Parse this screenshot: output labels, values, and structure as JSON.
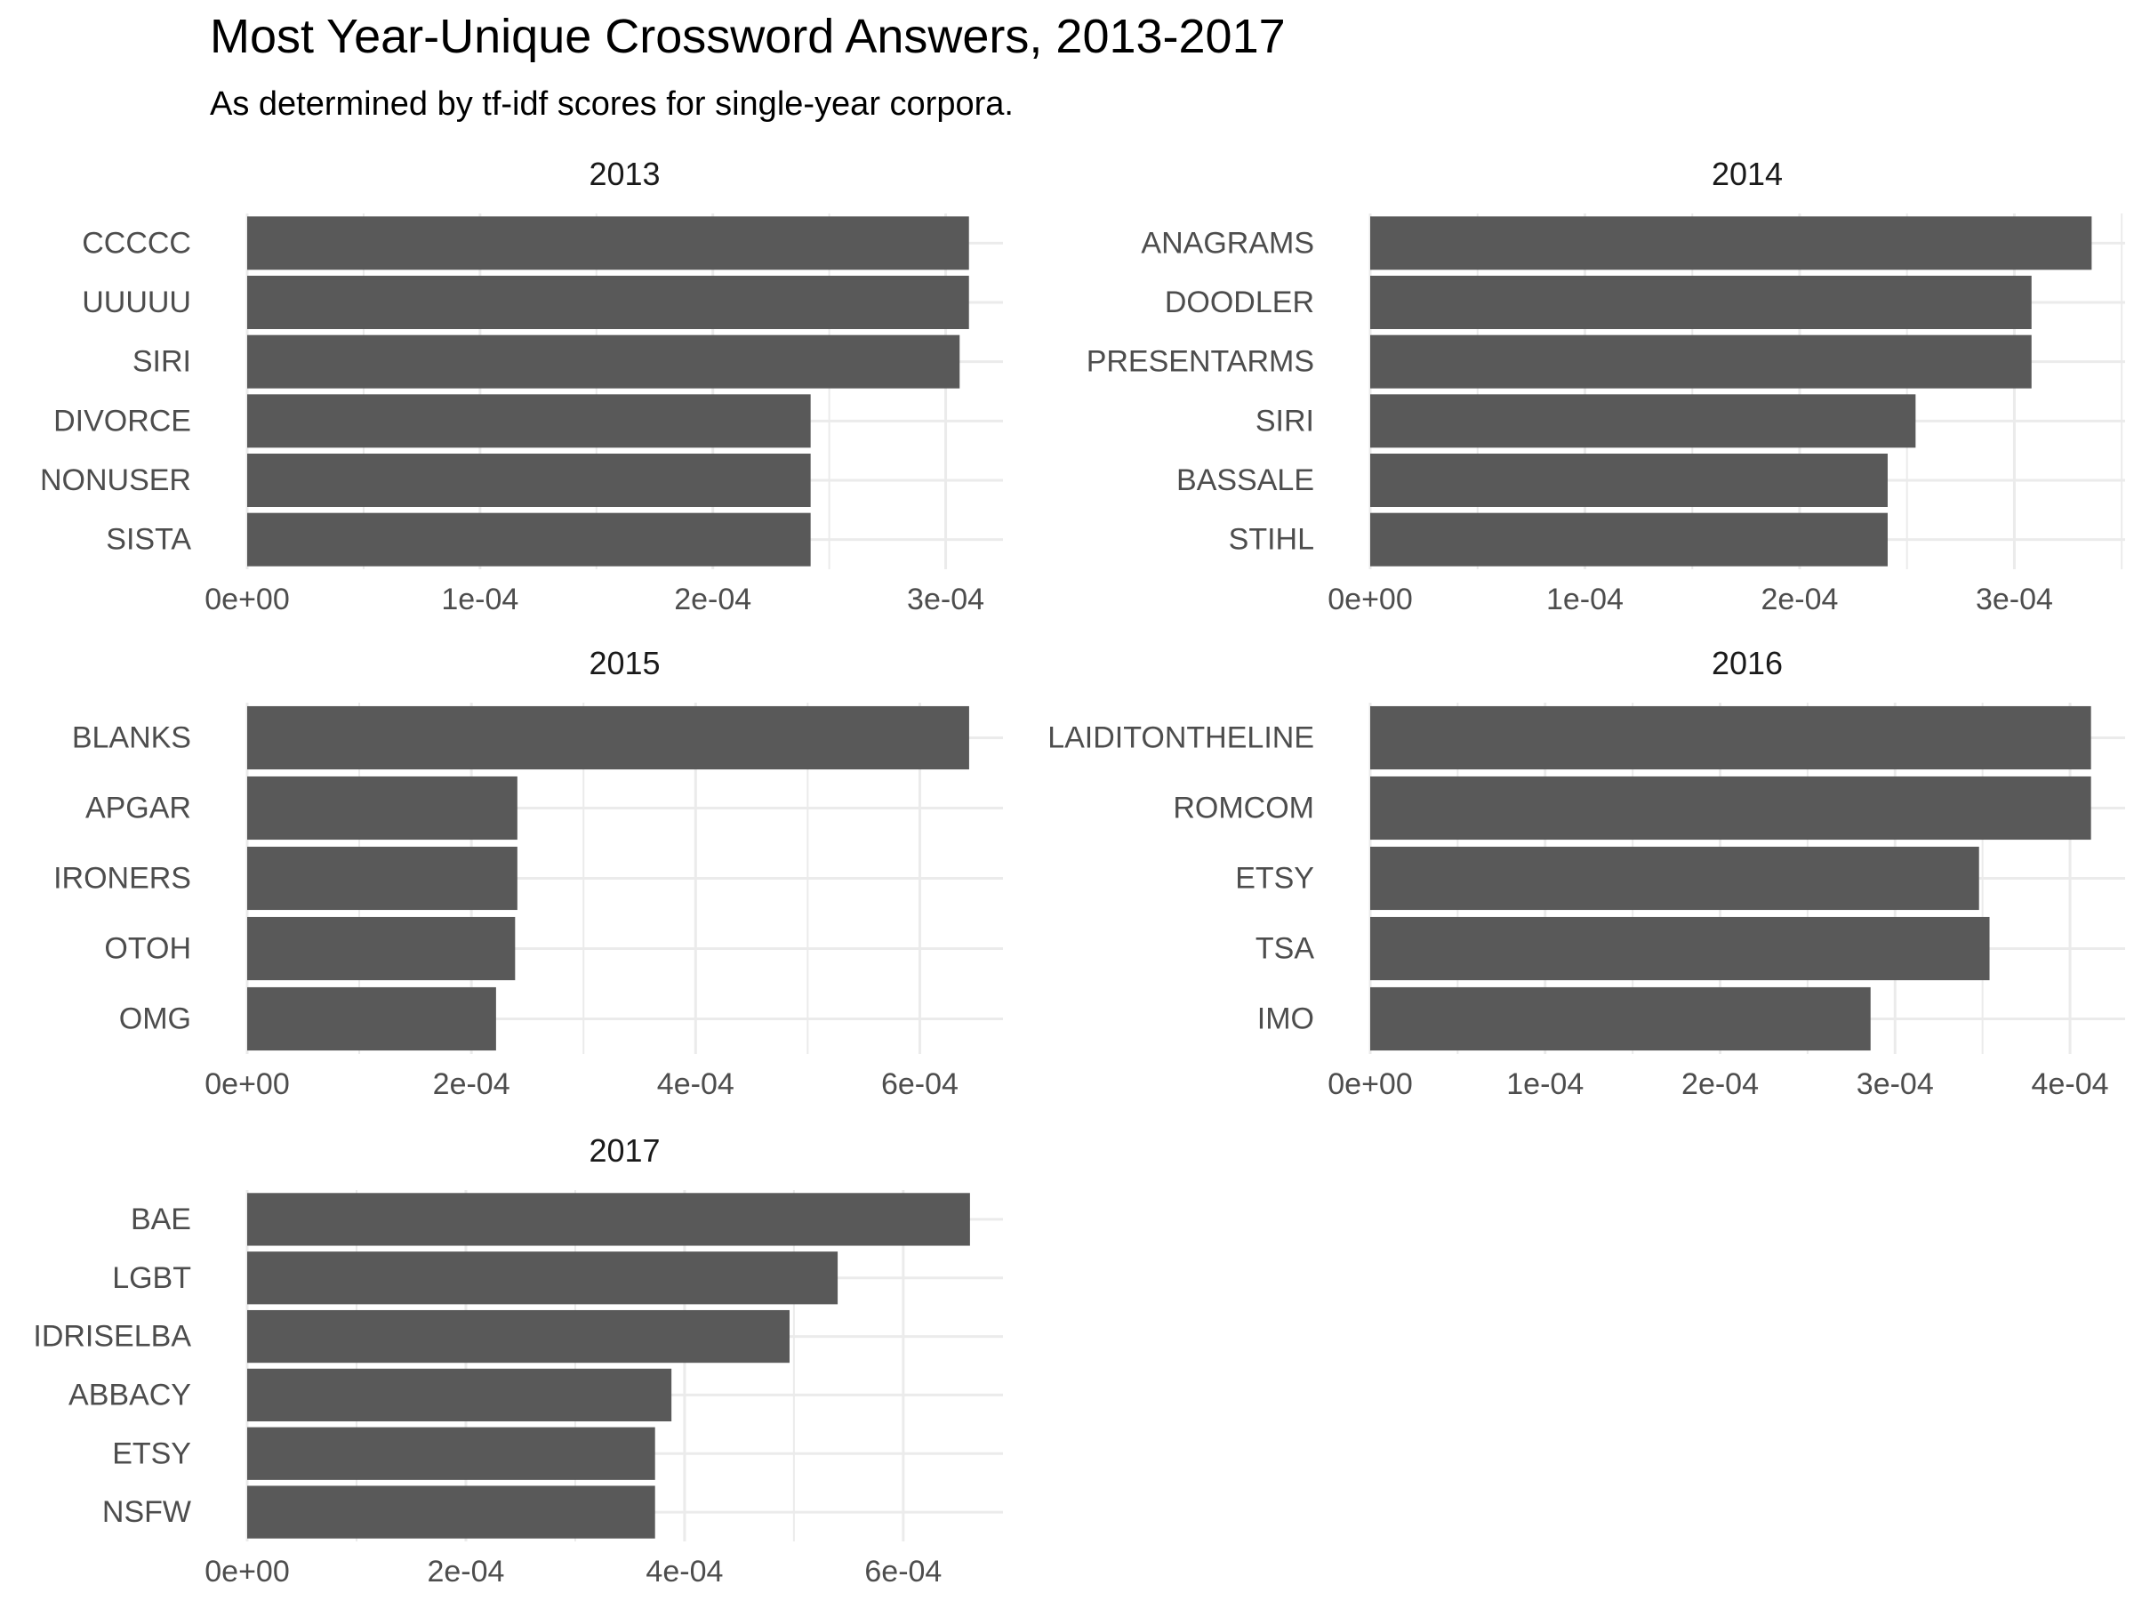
{
  "chart_data": {
    "title": "Most Year-Unique Crossword Answers, 2013-2017",
    "subtitle": "As determined by tf-idf scores for single-year corpora.",
    "type": "bar",
    "orientation": "horizontal",
    "grid": true,
    "bar_color": "#595959",
    "grid_color": "#ebebeb",
    "text_color": "#4d4d4d",
    "panels": [
      {
        "label": "2013",
        "categories": [
          "CCCCC",
          "UUUUU",
          "SIRI",
          "DIVORCE",
          "NONUSER",
          "SISTA"
        ],
        "values": [
          0.00031,
          0.00031,
          0.000306,
          0.000242,
          0.000242,
          0.000242
        ],
        "xlim": [
          0,
          0.000325
        ],
        "ticks": [
          0,
          0.0001,
          0.0002,
          0.0003
        ],
        "tick_labels": [
          "0e+00",
          "1e-04",
          "2e-04",
          "3e-04"
        ]
      },
      {
        "label": "2014",
        "categories": [
          "ANAGRAMS",
          "DOODLER",
          "PRESENTARMS",
          "SIRI",
          "BASSALE",
          "STIHL"
        ],
        "values": [
          0.000336,
          0.000308,
          0.000308,
          0.000254,
          0.000241,
          0.000241
        ],
        "xlim": [
          0,
          0.000352
        ],
        "ticks": [
          0,
          0.0001,
          0.0002,
          0.0003
        ],
        "tick_labels": [
          "0e+00",
          "1e-04",
          "2e-04",
          "3e-04"
        ]
      },
      {
        "label": "2015",
        "categories": [
          "BLANKS",
          "APGAR",
          "IRONERS",
          "OTOH",
          "OMG"
        ],
        "values": [
          0.000644,
          0.000241,
          0.000241,
          0.000239,
          0.000222
        ],
        "xlim": [
          0,
          0.000675
        ],
        "ticks": [
          0,
          0.0002,
          0.0004,
          0.0006
        ],
        "tick_labels": [
          "0e+00",
          "2e-04",
          "4e-04",
          "6e-04"
        ]
      },
      {
        "label": "2016",
        "categories": [
          "LAIDITONTHELINE",
          "ROMCOM",
          "ETSY",
          "TSA",
          "IMO"
        ],
        "values": [
          0.000412,
          0.000412,
          0.000348,
          0.000354,
          0.000286
        ],
        "xlim": [
          0,
          0.000432
        ],
        "ticks": [
          0,
          0.0001,
          0.0002,
          0.0003,
          0.0004
        ],
        "tick_labels": [
          "0e+00",
          "1e-04",
          "2e-04",
          "3e-04",
          "4e-04"
        ]
      },
      {
        "label": "2017",
        "categories": [
          "BAE",
          "LGBT",
          "IDRISELBA",
          "ABBACY",
          "ETSY",
          "NSFW"
        ],
        "values": [
          0.000661,
          0.00054,
          0.000496,
          0.000388,
          0.000373,
          0.000373
        ],
        "xlim": [
          0,
          0.000692
        ],
        "ticks": [
          0,
          0.0002,
          0.0004,
          0.0006
        ],
        "tick_labels": [
          "0e+00",
          "2e-04",
          "4e-04",
          "6e-04"
        ]
      }
    ]
  }
}
